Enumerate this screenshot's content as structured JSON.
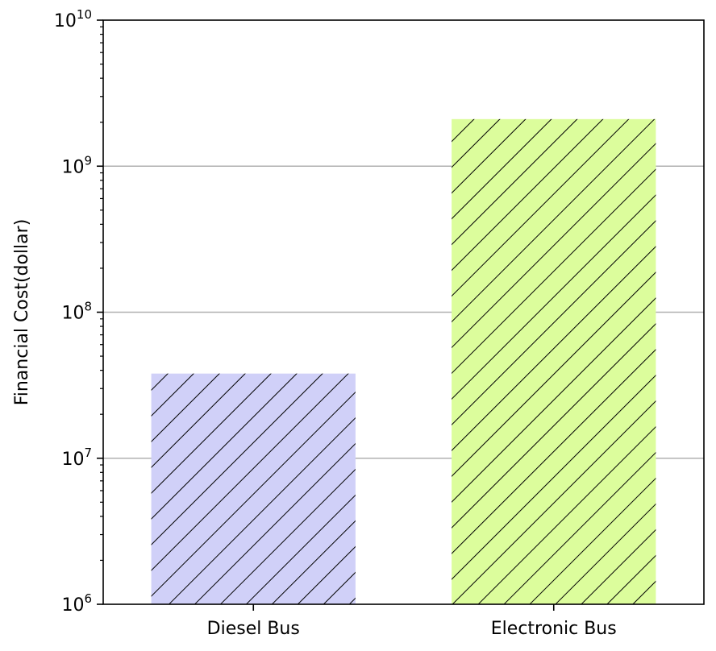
{
  "chart_data": {
    "type": "bar",
    "title": "",
    "xlabel": "",
    "ylabel": "Financial Cost(dollar)",
    "y_scale": "log",
    "ylim": [
      1000000,
      10000000000
    ],
    "y_ticks": [
      {
        "base": "10",
        "exp": "6"
      },
      {
        "base": "10",
        "exp": "7"
      },
      {
        "base": "10",
        "exp": "8"
      },
      {
        "base": "10",
        "exp": "9"
      },
      {
        "base": "10",
        "exp": "10"
      }
    ],
    "grid": "horizontal major",
    "hatch": "diagonal",
    "categories": [
      "Diesel Bus",
      "Electronic Bus"
    ],
    "values": [
      38000000,
      2100000000
    ],
    "colors": [
      "#d0d0f8",
      "#dcfd9c"
    ],
    "hatch_color": "#000000",
    "grid_color": "#b0b0b0"
  }
}
